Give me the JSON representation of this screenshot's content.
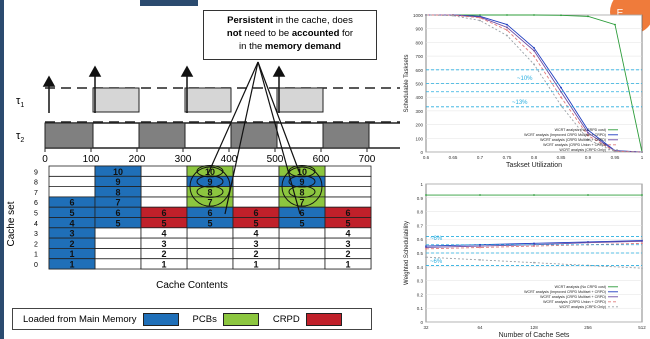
{
  "callout": {
    "line1_bold": "Persistent",
    "line1_rest": " in the cache, does",
    "line2_bold": "not",
    "line2_mid": " need to be ",
    "line2_bold2": "accounted",
    "line2_rest": " for",
    "line3_pre": "in the ",
    "line3_bold": "memory demand"
  },
  "tasks": {
    "t1": "τ",
    "t1_sub": "1",
    "t2": "τ",
    "t2_sub": "2"
  },
  "time_ticks": [
    "0",
    "100",
    "200",
    "300",
    "400",
    "500",
    "600",
    "700"
  ],
  "cache_set_label": "Cache set",
  "cache_contents_label": "Cache Contents",
  "set_rows": [
    "9",
    "8",
    "7",
    "6",
    "5",
    "4",
    "3",
    "2",
    "1",
    "0"
  ],
  "legend": {
    "main": "Loaded from Main Memory",
    "pcb": "PCBs",
    "crpd": "CRPD"
  },
  "badge": {
    "line1": "E",
    "line2": "2"
  },
  "colors": {
    "main_memory": "#1f6fb8",
    "pcb": "#8cc63f",
    "crpd": "#c0202a",
    "busy_light": "#d6d6d6",
    "busy_dark": "#808080",
    "line_green": "#2c9c3a",
    "line_blue": "#1e3cbf",
    "dashed_cyan": "#29aee0"
  },
  "chart_data": [
    {
      "type": "line",
      "ylabel": "Schedulable Tasksets",
      "xlabel": "Taskset Utilization",
      "x": [
        0.6,
        0.65,
        0.7,
        0.75,
        0.8,
        0.85,
        0.9,
        0.95,
        1.0
      ],
      "ylim": [
        0,
        1000
      ],
      "yticks": [
        "0",
        "100",
        "200",
        "300",
        "400",
        "500",
        "600",
        "700",
        "800",
        "900",
        "1000"
      ],
      "xticks": [
        "0.6",
        "0.65",
        "0.7",
        "0.75",
        "0.8",
        "0.85",
        "0.9",
        "0.95",
        "1"
      ],
      "annotations": [
        "~10%",
        "~13%"
      ],
      "series": [
        {
          "name": "WCRT analysis (No CRPD cost)",
          "values": [
            1000,
            1000,
            1000,
            1000,
            1000,
            998,
            990,
            930,
            0
          ]
        },
        {
          "name": "WCRT analysis (Improved CRPD Multiset + CRPD)",
          "values": [
            1000,
            1000,
            990,
            930,
            760,
            470,
            160,
            10,
            0
          ]
        },
        {
          "name": "WCRT analysis (CRPD Multiset + CRPD)",
          "values": [
            1000,
            1000,
            985,
            910,
            740,
            440,
            140,
            8,
            0
          ]
        },
        {
          "name": "WCRT analysis (CRPD Union + CRPD)",
          "values": [
            1000,
            998,
            980,
            890,
            700,
            400,
            120,
            5,
            0
          ]
        },
        {
          "name": "WCRT analysis (CRPD Only)",
          "values": [
            1000,
            995,
            960,
            850,
            640,
            340,
            90,
            3,
            0
          ]
        }
      ]
    },
    {
      "type": "line",
      "ylabel": "Weighted Schedulability",
      "xlabel": "Number of Cache Sets",
      "x": [
        "32",
        "64",
        "128",
        "256",
        "512"
      ],
      "ylim": [
        0,
        1
      ],
      "yticks": [
        "0",
        "0.1",
        "0.2",
        "0.3",
        "0.4",
        "0.5",
        "0.6",
        "0.7",
        "0.8",
        "0.9",
        "1"
      ],
      "annotations": [
        "~6%",
        "~6%"
      ],
      "series": [
        {
          "name": "WCRT analysis (No CRPD cost)",
          "values": [
            0.92,
            0.92,
            0.92,
            0.92,
            0.92
          ]
        },
        {
          "name": "WCRT analysis (Improved CRPD Multiset + CRPD)",
          "values": [
            0.55,
            0.56,
            0.57,
            0.58,
            0.59
          ]
        },
        {
          "name": "WCRT analysis (CRPD Multiset + CRPD)",
          "values": [
            0.54,
            0.55,
            0.56,
            0.575,
            0.585
          ]
        },
        {
          "name": "WCRT analysis (CRPD Union + CRPD)",
          "values": [
            0.53,
            0.54,
            0.55,
            0.56,
            0.57
          ]
        },
        {
          "name": "WCRT analysis (CRPD Only)",
          "values": [
            0.47,
            0.45,
            0.43,
            0.41,
            0.39
          ]
        }
      ]
    }
  ]
}
